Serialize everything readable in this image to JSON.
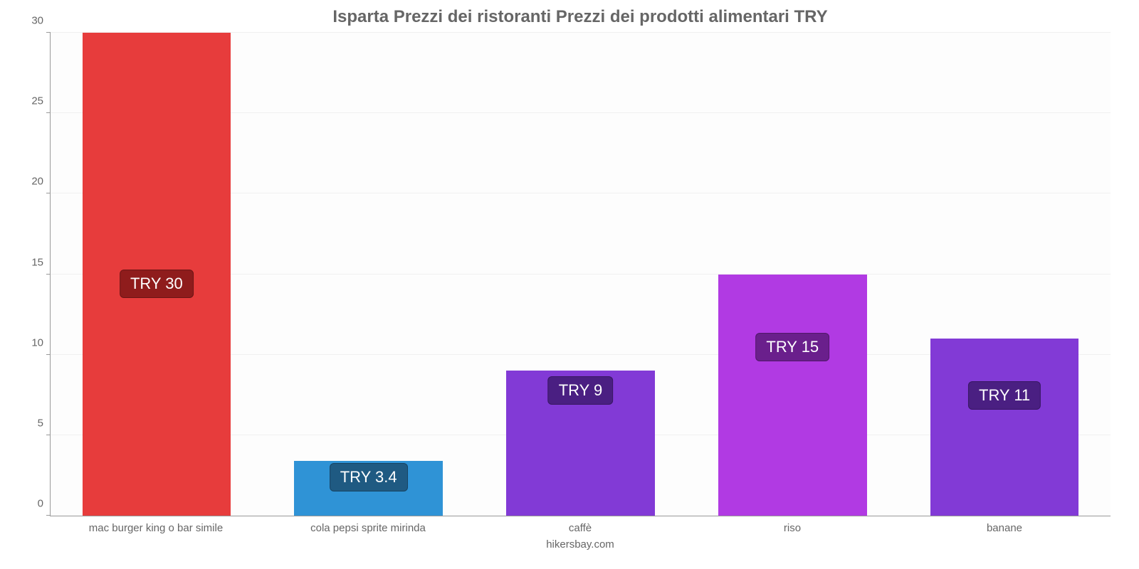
{
  "chart": {
    "type": "bar",
    "title": "Isparta Prezzi dei ristoranti Prezzi dei prodotti alimentari TRY",
    "title_fontsize": 24,
    "title_color": "#666666",
    "background_color": "#fdfdfd",
    "grid_color": "#f0f0f0",
    "axis_color": "#999999",
    "label_color": "#666666",
    "label_fontsize": 15,
    "badge_fontsize": 22,
    "ylim": [
      0,
      30
    ],
    "ytick_step": 5,
    "yticks": [
      0,
      5,
      10,
      15,
      20,
      25,
      30
    ],
    "bar_width": 0.7,
    "categories": [
      "mac burger king o bar simile",
      "cola pepsi sprite mirinda",
      "caffè",
      "riso",
      "banane"
    ],
    "values": [
      30,
      3.4,
      9,
      15,
      11
    ],
    "value_labels": [
      "TRY 30",
      "TRY 3.4",
      "TRY 9",
      "TRY 15",
      "TRY 11"
    ],
    "bar_colors": [
      "#e73c3c",
      "#2f93d6",
      "#823ad6",
      "#b13ae3",
      "#823ad6"
    ],
    "badge_colors": [
      "#8f1c1c",
      "#1f5a82",
      "#4a1f82",
      "#6a1f8c",
      "#4a1f82"
    ],
    "badge_offsets_pct": [
      45,
      5,
      23,
      32,
      22
    ],
    "credit": "hikersbay.com"
  }
}
